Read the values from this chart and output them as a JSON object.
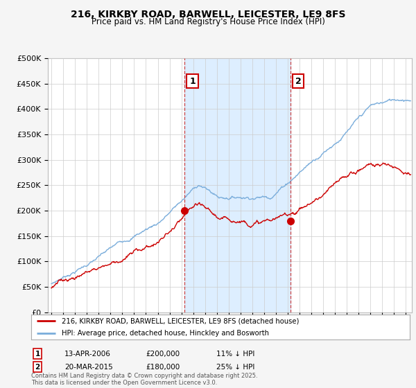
{
  "title": "216, KIRKBY ROAD, BARWELL, LEICESTER, LE9 8FS",
  "subtitle": "Price paid vs. HM Land Registry's House Price Index (HPI)",
  "legend_line1": "216, KIRKBY ROAD, BARWELL, LEICESTER, LE9 8FS (detached house)",
  "legend_line2": "HPI: Average price, detached house, Hinckley and Bosworth",
  "marker1_date": "13-APR-2006",
  "marker1_price": 200000,
  "marker1_label": "11% ↓ HPI",
  "marker1_x": 2006.28,
  "marker2_date": "20-MAR-2015",
  "marker2_price": 180000,
  "marker2_label": "25% ↓ HPI",
  "marker2_x": 2015.22,
  "vline1_x": 2006.28,
  "vline2_x": 2015.22,
  "red_color": "#cc0000",
  "blue_color": "#7aaddb",
  "shade_color": "#ddeeff",
  "footer": "Contains HM Land Registry data © Crown copyright and database right 2025.\nThis data is licensed under the Open Government Licence v3.0.",
  "ylim": [
    0,
    500000
  ],
  "xlim": [
    1994.7,
    2025.5
  ],
  "bg_color": "#f5f5f5"
}
